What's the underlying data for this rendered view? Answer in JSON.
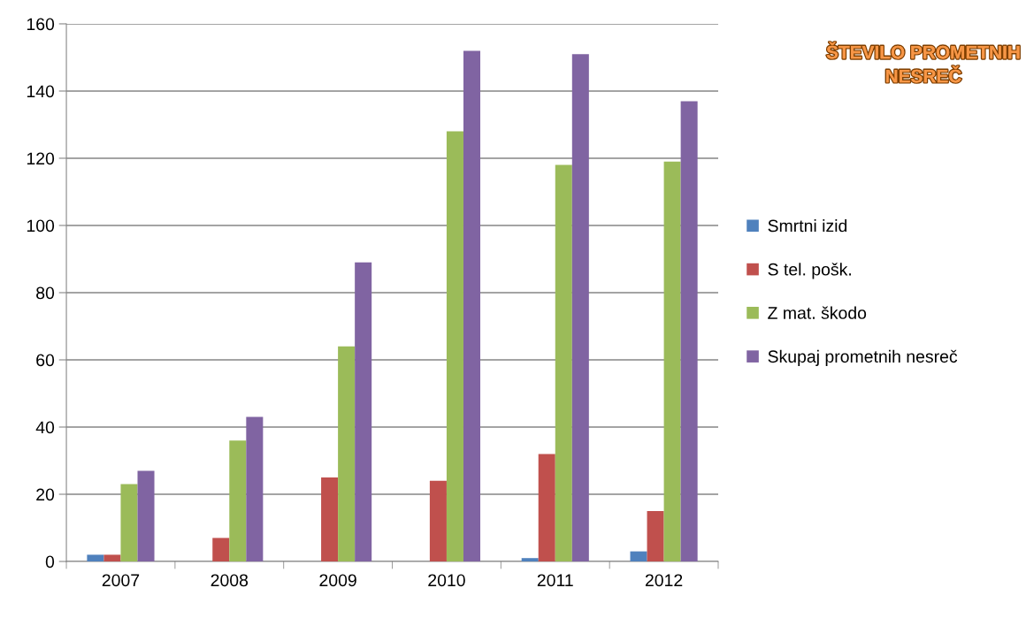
{
  "chart_data": {
    "type": "bar",
    "title": "ŠTEVILO PROMETNIH NESREČ",
    "categories": [
      "2007",
      "2008",
      "2009",
      "2010",
      "2011",
      "2012"
    ],
    "series": [
      {
        "name": "Smrtni izid",
        "color": "#4f81bd",
        "values": [
          2,
          0,
          0,
          0,
          1,
          3
        ]
      },
      {
        "name": "S tel. pošk.",
        "color": "#c0504d",
        "values": [
          2,
          7,
          25,
          24,
          32,
          15
        ]
      },
      {
        "name": "Z mat. škodo",
        "color": "#9bbb59",
        "values": [
          23,
          36,
          64,
          128,
          118,
          119
        ]
      },
      {
        "name": "Skupaj prometnih nesreč",
        "color": "#8064a2",
        "values": [
          27,
          43,
          89,
          152,
          151,
          137
        ]
      }
    ],
    "ylim": [
      0,
      160
    ],
    "yticks": [
      0,
      20,
      40,
      60,
      80,
      100,
      120,
      140,
      160
    ],
    "grid": "y",
    "legend": "right"
  }
}
